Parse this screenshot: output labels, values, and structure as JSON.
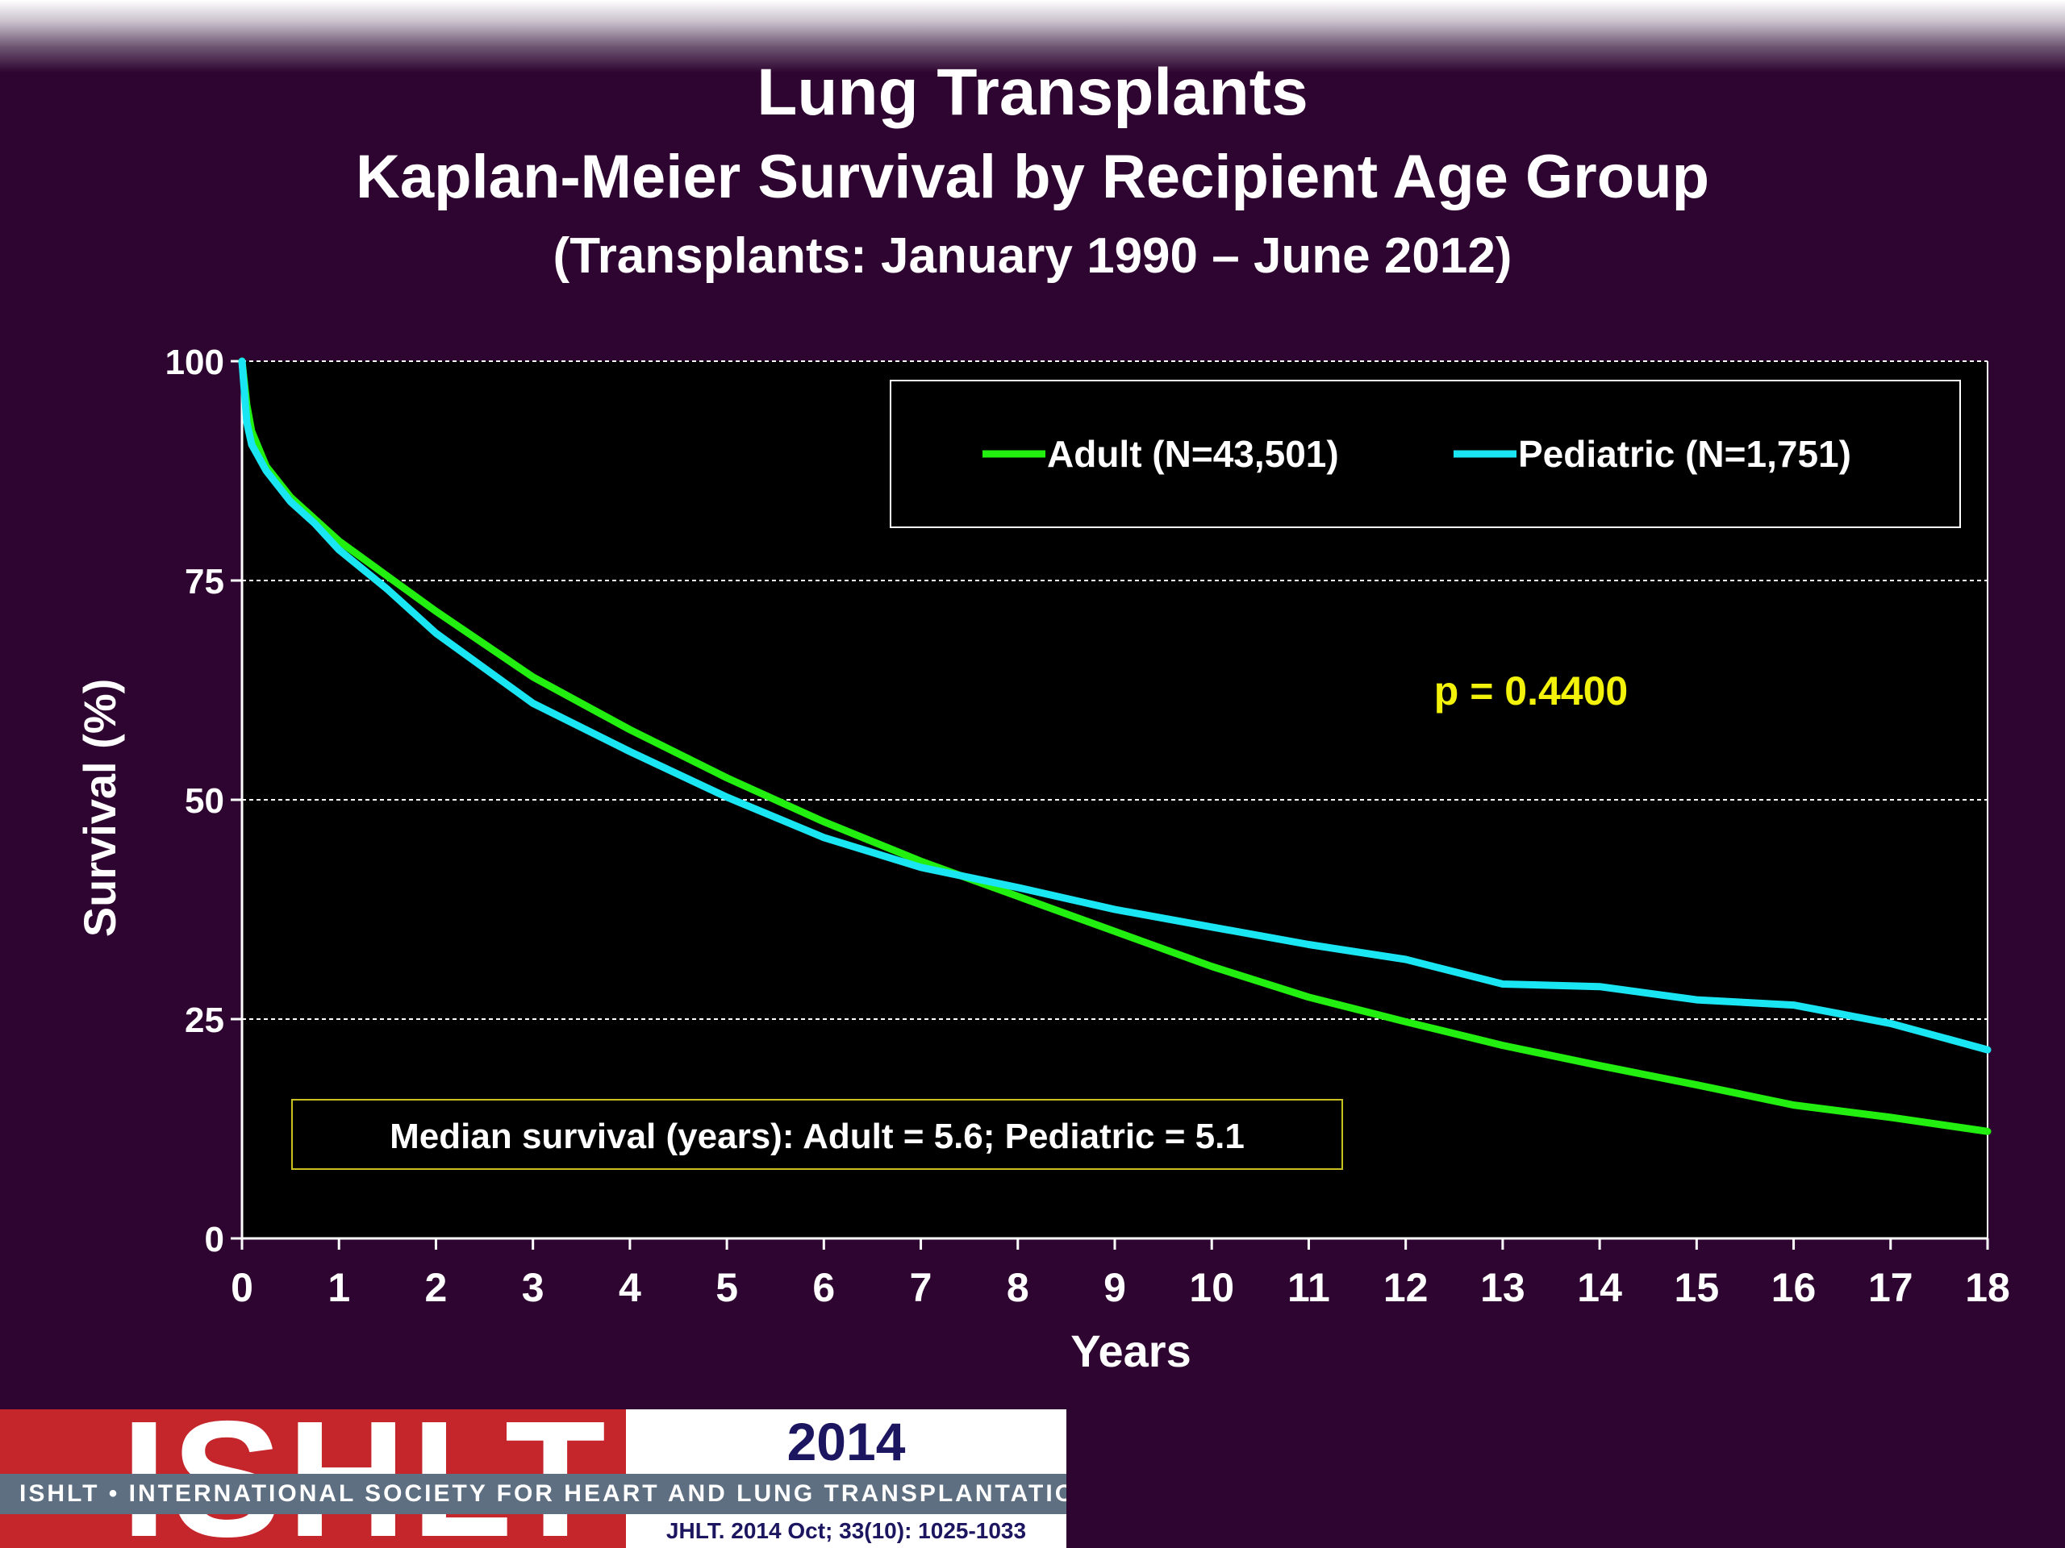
{
  "header": {
    "title": "Lung Transplants",
    "subtitle": "Kaplan-Meier Survival by Recipient Age Group",
    "period": "(Transplants: January 1990 – June 2012)"
  },
  "chart_data": {
    "type": "line",
    "xlabel": "Years",
    "ylabel": "Survival (%)",
    "xlim": [
      0,
      18
    ],
    "ylim": [
      0,
      100
    ],
    "x_ticks": [
      "0",
      "1",
      "2",
      "3",
      "4",
      "5",
      "6",
      "7",
      "8",
      "9",
      "10",
      "11",
      "12",
      "13",
      "14",
      "15",
      "16",
      "17",
      "18"
    ],
    "y_ticks": [
      "0",
      "25",
      "50",
      "75",
      "100"
    ],
    "grid": "horizontal dashed",
    "legend_placement": "top-right",
    "series": [
      {
        "name": "Adult (N=43,501)",
        "color": "#22ee10",
        "x": [
          0,
          0.05,
          0.1,
          0.25,
          0.5,
          0.75,
          1,
          1.5,
          2,
          3,
          4,
          5,
          6,
          7,
          8,
          9,
          10,
          11,
          12,
          13,
          14,
          15,
          16,
          17,
          18
        ],
        "y": [
          100,
          95,
          92,
          88,
          84.5,
          82,
          79.5,
          75.5,
          71.5,
          64,
          58,
          52.5,
          47.5,
          43,
          39,
          35,
          31,
          27.5,
          24.7,
          22,
          19.7,
          17.5,
          15.2,
          13.8,
          12.2
        ]
      },
      {
        "name": "Pediatric (N=1,751)",
        "color": "#19e6f2",
        "x": [
          0,
          0.05,
          0.1,
          0.25,
          0.5,
          0.75,
          1,
          1.5,
          2,
          3,
          4,
          5,
          6,
          7,
          8,
          9,
          10,
          11,
          12,
          13,
          14,
          15,
          16,
          17,
          18
        ],
        "y": [
          100,
          93,
          90.5,
          87.5,
          84,
          81.5,
          78.5,
          74,
          69,
          61,
          55.5,
          50.3,
          45.7,
          42.3,
          40,
          37.5,
          35.5,
          33.5,
          31.8,
          29,
          28.7,
          27.2,
          26.6,
          24.5,
          21.5
        ]
      }
    ],
    "annotations": {
      "p_value": "p = 0.4400",
      "median": "Median survival (years): Adult = 5.6; Pediatric = 5.1"
    }
  },
  "colors": {
    "background": "#2e0530",
    "plot_background": "#000000",
    "p_value": "#f2f20a",
    "median_box_border": "#c8c020"
  },
  "footer": {
    "logo_text": "ISHLT",
    "year": "2014",
    "society": "ISHLT • INTERNATIONAL SOCIETY FOR HEART AND LUNG TRANSPLANTATION",
    "citation": "JHLT. 2014 Oct; 33(10): 1025-1033"
  }
}
